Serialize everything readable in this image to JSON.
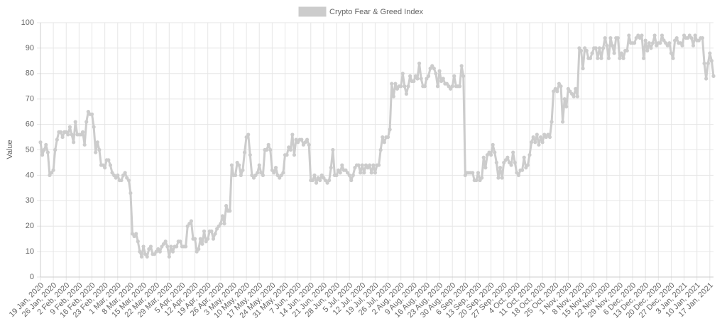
{
  "chart_data": {
    "type": "line",
    "y_label": "Value",
    "ylim": [
      0,
      100
    ],
    "yticks": [
      0,
      10,
      20,
      30,
      40,
      50,
      60,
      70,
      80,
      90,
      100
    ],
    "grid": true,
    "legend": "top",
    "categories": [
      "19 Jan, 2020",
      null,
      null,
      null,
      null,
      null,
      null,
      "26 Jan, 2020",
      null,
      null,
      null,
      null,
      null,
      null,
      "2 Feb, 2020",
      null,
      null,
      null,
      null,
      null,
      null,
      "9 Feb, 2020",
      null,
      null,
      null,
      null,
      null,
      null,
      "16 Feb, 2020",
      null,
      null,
      null,
      null,
      null,
      null,
      "23 Feb, 2020",
      null,
      null,
      null,
      null,
      null,
      null,
      "1 Mar, 2020",
      null,
      null,
      null,
      null,
      null,
      null,
      "8 Mar, 2020",
      null,
      null,
      null,
      null,
      null,
      null,
      "15 Mar, 2020",
      null,
      null,
      null,
      null,
      null,
      null,
      "22 Mar, 2020",
      null,
      null,
      null,
      null,
      null,
      null,
      "29 Mar, 2020",
      null,
      null,
      null,
      null,
      null,
      null,
      "5 Apr, 2020",
      null,
      null,
      null,
      null,
      null,
      null,
      "12 Apr, 2020",
      null,
      null,
      null,
      null,
      null,
      null,
      "19 Apr, 2020",
      null,
      null,
      null,
      null,
      null,
      null,
      "26 Apr, 2020",
      null,
      null,
      null,
      null,
      null,
      null,
      "3 May, 2020",
      null,
      null,
      null,
      null,
      null,
      null,
      "10 May, 2020",
      null,
      null,
      null,
      null,
      null,
      null,
      "17 May, 2020",
      null,
      null,
      null,
      null,
      null,
      null,
      "24 May, 2020",
      null,
      null,
      null,
      null,
      null,
      null,
      "31 May, 2020",
      null,
      null,
      null,
      null,
      null,
      null,
      "7 Jun, 2020",
      null,
      null,
      null,
      null,
      null,
      null,
      "14 Jun, 2020",
      null,
      null,
      null,
      null,
      null,
      null,
      "21 Jun, 2020",
      null,
      null,
      null,
      null,
      null,
      null,
      "28 Jun, 2020",
      null,
      null,
      null,
      null,
      null,
      null,
      "5 Jul, 2020",
      null,
      null,
      null,
      null,
      null,
      null,
      "12 Jul, 2020",
      null,
      null,
      null,
      null,
      null,
      null,
      "19 Jul, 2020",
      null,
      null,
      null,
      null,
      null,
      null,
      "26 Jul, 2020",
      null,
      null,
      null,
      null,
      null,
      null,
      "2 Aug, 2020",
      null,
      null,
      null,
      null,
      null,
      null,
      "9 Aug, 2020",
      null,
      null,
      null,
      null,
      null,
      null,
      "16 Aug, 2020",
      null,
      null,
      null,
      null,
      null,
      null,
      "23 Aug, 2020",
      null,
      null,
      null,
      null,
      null,
      null,
      "30 Aug, 2020",
      null,
      null,
      null,
      null,
      null,
      null,
      "6 Sep, 2020",
      null,
      null,
      null,
      null,
      null,
      null,
      "13 Sep, 2020",
      null,
      null,
      null,
      null,
      null,
      null,
      "20 Sep, 2020",
      null,
      null,
      null,
      null,
      null,
      null,
      "27 Sep, 2020",
      null,
      null,
      null,
      null,
      null,
      null,
      "4 Oct, 2020",
      null,
      null,
      null,
      null,
      null,
      null,
      "11 Oct, 2020",
      null,
      null,
      null,
      null,
      null,
      null,
      "18 Oct, 2020",
      null,
      null,
      null,
      null,
      null,
      null,
      "25 Oct, 2020",
      null,
      null,
      null,
      null,
      null,
      null,
      "1 Nov, 2020",
      null,
      null,
      null,
      null,
      null,
      null,
      "8 Nov, 2020",
      null,
      null,
      null,
      null,
      null,
      null,
      "15 Nov, 2020",
      null,
      null,
      null,
      null,
      null,
      null,
      "22 Nov, 2020",
      null,
      null,
      null,
      null,
      null,
      null,
      "29 Nov, 2020",
      null,
      null,
      null,
      null,
      null,
      null,
      "6 Dec, 2020",
      null,
      null,
      null,
      null,
      null,
      null,
      "13 Dec, 2020",
      null,
      null,
      null,
      null,
      null,
      null,
      "20 Dec, 2020",
      null,
      null,
      null,
      null,
      null,
      null,
      "27 Dec, 2020",
      null,
      null,
      null,
      null,
      null,
      null,
      "3 Jan, 2021",
      null,
      null,
      null,
      null,
      null,
      null,
      "10 Jan, 2021",
      null,
      null,
      null,
      null,
      null,
      null,
      "17 Jan, 2021",
      null,
      null
    ],
    "series": [
      {
        "name": "Crypto Fear & Greed Index",
        "color": "#cccccc",
        "values": [
          53,
          48,
          50,
          52,
          49,
          40,
          41,
          42,
          50,
          54,
          57,
          57,
          55,
          57,
          57,
          56,
          59,
          56,
          53,
          61,
          56,
          56,
          56,
          57,
          52,
          61,
          65,
          64,
          64,
          59,
          49,
          53,
          50,
          44,
          44,
          43,
          46,
          46,
          44,
          41,
          40,
          39,
          40,
          38,
          38,
          40,
          41,
          39,
          38,
          33,
          17,
          16,
          17,
          14,
          10,
          8,
          12,
          9,
          8,
          11,
          12,
          9,
          9,
          10,
          11,
          10,
          12,
          13,
          14,
          12,
          8,
          12,
          10,
          12,
          12,
          14,
          14,
          12,
          12,
          12,
          20,
          21,
          22,
          15,
          15,
          10,
          11,
          15,
          13,
          18,
          14,
          15,
          18,
          18,
          15,
          17,
          19,
          20,
          21,
          24,
          21,
          28,
          26,
          26,
          44,
          40,
          40,
          45,
          44,
          40,
          42,
          49,
          55,
          56,
          48,
          40,
          39,
          40,
          41,
          44,
          41,
          40,
          50,
          50,
          52,
          50,
          42,
          41,
          43,
          40,
          39,
          40,
          41,
          48,
          48,
          51,
          50,
          56,
          48,
          54,
          53,
          54,
          54,
          52,
          53,
          54,
          52,
          38,
          38,
          40,
          37,
          39,
          38,
          40,
          39,
          38,
          37,
          38,
          43,
          50,
          40,
          40,
          42,
          41,
          44,
          42,
          42,
          41,
          40,
          38,
          40,
          43,
          44,
          44,
          41,
          44,
          41,
          44,
          43,
          44,
          41,
          44,
          41,
          44,
          44,
          50,
          55,
          53,
          55,
          55,
          58,
          76,
          71,
          76,
          74,
          75,
          75,
          80,
          75,
          72,
          75,
          79,
          77,
          77,
          79,
          78,
          84,
          78,
          75,
          75,
          78,
          79,
          82,
          83,
          82,
          80,
          75,
          81,
          77,
          78,
          76,
          76,
          75,
          74,
          75,
          79,
          75,
          75,
          75,
          83,
          79,
          40,
          41,
          41,
          41,
          41,
          38,
          38,
          41,
          38,
          39,
          47,
          43,
          48,
          49,
          48,
          52,
          49,
          45,
          39,
          43,
          39,
          45,
          46,
          47,
          45,
          44,
          49,
          45,
          41,
          40,
          42,
          42,
          47,
          43,
          44,
          48,
          53,
          55,
          53,
          56,
          52,
          55,
          53,
          56,
          55,
          56,
          55,
          61,
          73,
          74,
          73,
          76,
          75,
          61,
          70,
          67,
          74,
          73,
          72,
          71,
          74,
          71,
          90,
          89,
          82,
          90,
          89,
          86,
          86,
          88,
          90,
          90,
          86,
          90,
          86,
          90,
          94,
          91,
          86,
          94,
          91,
          88,
          94,
          94,
          86,
          88,
          86,
          89,
          89,
          95,
          92,
          92,
          92,
          94,
          95,
          94,
          95,
          86,
          93,
          89,
          92,
          90,
          92,
          95,
          91,
          92,
          92,
          95,
          93,
          92,
          91,
          92,
          88,
          86,
          93,
          94,
          92,
          92,
          91,
          95,
          94,
          94,
          95,
          94,
          91,
          95,
          93,
          93,
          94,
          94,
          84,
          78,
          84,
          88,
          85,
          79
        ]
      }
    ]
  }
}
